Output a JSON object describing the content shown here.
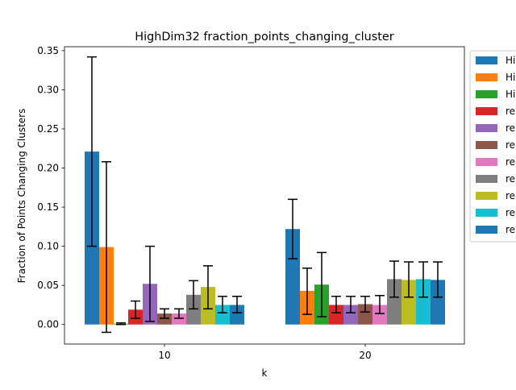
{
  "chart_data": {
    "type": "bar",
    "title": "HighDim32 fraction_points_changing_cluster",
    "xlabel": "k",
    "ylabel": "Fraction of Points Changing Clusters",
    "categories": [
      "10",
      "20"
    ],
    "ylim": [
      -0.025,
      0.355
    ],
    "yticks": [
      0.0,
      0.05,
      0.1,
      0.15,
      0.2,
      0.25,
      0.3,
      0.35
    ],
    "ytick_labels": [
      "0.00",
      "0.05",
      "0.10",
      "0.15",
      "0.20",
      "0.25",
      "0.30",
      "0.35"
    ],
    "grid": false,
    "legend_position": "right-outside",
    "series": [
      {
        "legend_text": "Hi",
        "color": "#1f77b4",
        "values": [
          0.221,
          0.122
        ],
        "err_low": [
          0.1,
          0.084
        ],
        "err_high": [
          0.342,
          0.16
        ]
      },
      {
        "legend_text": "Hi",
        "color": "#ff7f0e",
        "values": [
          0.099,
          0.043
        ],
        "err_low": [
          -0.01,
          0.013
        ],
        "err_high": [
          0.208,
          0.072
        ]
      },
      {
        "legend_text": "Hi",
        "color": "#2ca02c",
        "values": [
          0.001,
          0.051
        ],
        "err_low": [
          0.0,
          0.01
        ],
        "err_high": [
          0.002,
          0.092
        ]
      },
      {
        "legend_text": "re",
        "color": "#d62728",
        "values": [
          0.019,
          0.025
        ],
        "err_low": [
          0.008,
          0.015
        ],
        "err_high": [
          0.03,
          0.036
        ]
      },
      {
        "legend_text": "re",
        "color": "#9467bd",
        "values": [
          0.052,
          0.025
        ],
        "err_low": [
          0.004,
          0.015
        ],
        "err_high": [
          0.1,
          0.036
        ]
      },
      {
        "legend_text": "re",
        "color": "#8c564b",
        "values": [
          0.014,
          0.026
        ],
        "err_low": [
          0.008,
          0.016
        ],
        "err_high": [
          0.02,
          0.036
        ]
      },
      {
        "legend_text": "re",
        "color": "#e377c2",
        "values": [
          0.014,
          0.025
        ],
        "err_low": [
          0.008,
          0.014
        ],
        "err_high": [
          0.02,
          0.037
        ]
      },
      {
        "legend_text": "re",
        "color": "#7f7f7f",
        "values": [
          0.038,
          0.058
        ],
        "err_low": [
          0.02,
          0.035
        ],
        "err_high": [
          0.056,
          0.081
        ]
      },
      {
        "legend_text": "re",
        "color": "#bcbd22",
        "values": [
          0.048,
          0.057
        ],
        "err_low": [
          0.02,
          0.035
        ],
        "err_high": [
          0.075,
          0.08
        ]
      },
      {
        "legend_text": "re",
        "color": "#17becf",
        "values": [
          0.025,
          0.058
        ],
        "err_low": [
          0.015,
          0.035
        ],
        "err_high": [
          0.036,
          0.08
        ]
      },
      {
        "legend_text": "re",
        "color": "#1f77b4",
        "values": [
          0.025,
          0.057
        ],
        "err_low": [
          0.015,
          0.035
        ],
        "err_high": [
          0.036,
          0.08
        ]
      }
    ]
  }
}
